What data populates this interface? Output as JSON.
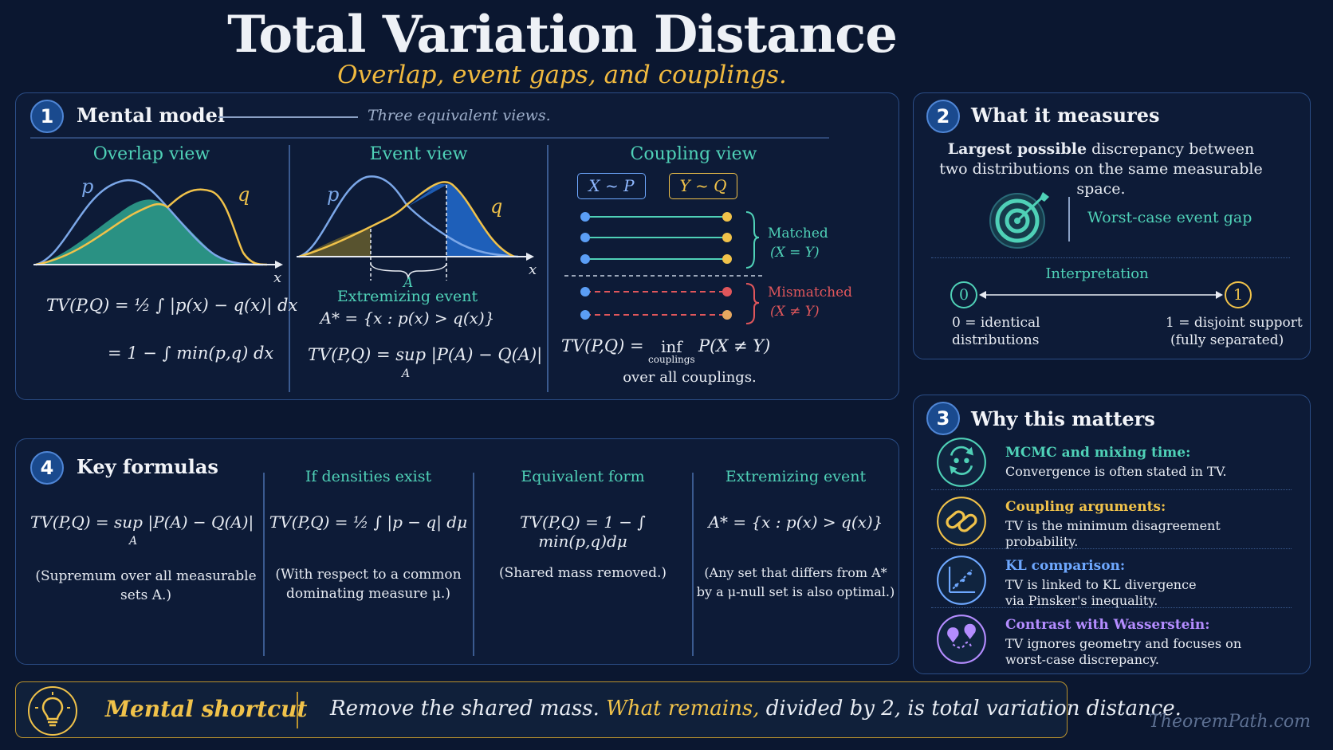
{
  "header": {
    "title": "Total Variation Distance",
    "subtitle": "Overlap, event gaps, and couplings."
  },
  "panel1": {
    "number": "1",
    "title": "Mental model",
    "note": "Three equivalent views.",
    "overlap": {
      "title": "Overlap view",
      "p": "p",
      "q": "q",
      "x": "x",
      "formula1": "TV(P,Q) = ½ ∫ |p(x) − q(x)| dx",
      "formula2": "= 1 − ∫ min(p,q) dx"
    },
    "event": {
      "title": "Event view",
      "p": "p",
      "q": "q",
      "x": "x",
      "a_label": "A",
      "caption": "Extremizing event",
      "set": "A* = {x : p(x) > q(x)}",
      "formula": "TV(P,Q) = sup |P(A) − Q(A)|",
      "sub": "A"
    },
    "coupling": {
      "title": "Coupling view",
      "x_tag": "X ~ P",
      "y_tag": "Y ~ Q",
      "matched": "Matched",
      "matched_eq": "(X = Y)",
      "mismatched": "Mismatched",
      "mismatched_eq": "(X ≠ Y)",
      "formula_a": "TV(P,Q) = ",
      "inf": "inf",
      "inf_sub": "couplings",
      "formula_b": "P(X ≠ Y)",
      "caption": "over all couplings."
    }
  },
  "panel2": {
    "number": "2",
    "title": "What it measures",
    "desc_bold": "Largest possible",
    "desc_rest": " discrepancy between",
    "desc_line2": "two distributions on the same measurable space.",
    "event_gap": "Worst-case event gap",
    "interp": "Interpretation",
    "zero": "0",
    "one": "1",
    "zero_label_1": "0 = identical",
    "zero_label_2": "distributions",
    "one_label_1": "1 = disjoint support",
    "one_label_2": "(fully separated)"
  },
  "panel3": {
    "number": "3",
    "title": "Why this matters",
    "items": [
      {
        "title": "MCMC and mixing time:",
        "line1": "Convergence is often stated in TV.",
        "line2": "",
        "color": "#4fd1b7",
        "icon": "cycle-icon"
      },
      {
        "title": "Coupling arguments:",
        "line1": "TV is the minimum disagreement",
        "line2": "probability.",
        "color": "#f0c24a",
        "icon": "link-icon"
      },
      {
        "title": "KL comparison:",
        "line1": "TV is linked to KL divergence",
        "line2": "via Pinsker's inequality.",
        "color": "#6ea8ff",
        "icon": "trend-icon"
      },
      {
        "title": "Contrast with Wasserstein:",
        "line1": "TV ignores geometry and focuses on",
        "line2": "worst-case discrepancy.",
        "color": "#b48cff",
        "icon": "route-pin-icon"
      }
    ]
  },
  "panel4": {
    "number": "4",
    "title": "Key formulas",
    "cols": [
      {
        "head": "",
        "formula": "TV(P,Q) = sup |P(A) − Q(A)|",
        "sub": "A",
        "note1": "(Supremum over all measurable",
        "note2": "sets A.)"
      },
      {
        "head": "If densities exist",
        "formula": "TV(P,Q) = ½ ∫ |p − q| dμ",
        "sub": "",
        "note1": "(With respect to a common",
        "note2": "dominating measure μ.)"
      },
      {
        "head": "Equivalent form",
        "formula": "TV(P,Q) = 1 − ∫ min(p,q)dμ",
        "sub": "",
        "note1": "(Shared mass removed.)",
        "note2": ""
      },
      {
        "head": "Extremizing event",
        "formula": "A* = {x : p(x) > q(x)}",
        "sub": "",
        "note1": "(Any set that differs from A*",
        "note2": "by a μ-null set is also optimal.)"
      }
    ]
  },
  "shortcut": {
    "label": "Mental shortcut",
    "text_a": "Remove the shared mass.",
    "text_b": " What remains,",
    "text_c": " divided by 2, is total variation distance."
  },
  "watermark": "TheoremPath.com",
  "colors": {
    "background": "#0b1730",
    "teal": "#4fd1b7",
    "gold": "#f0c24a",
    "blue": "#6ea8ff",
    "purple": "#b48cff",
    "red": "#e0565b"
  }
}
